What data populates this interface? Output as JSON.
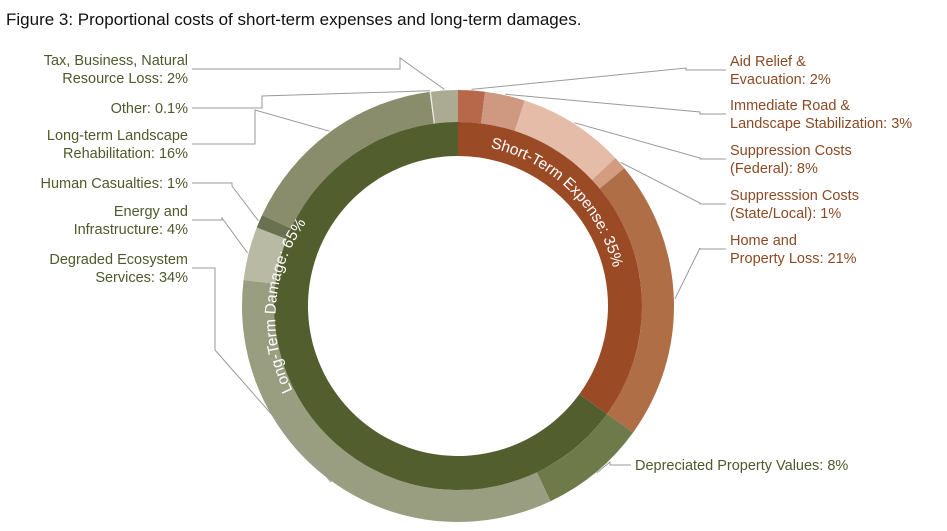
{
  "title": "Figure 3: Proportional costs of short-term expenses and long-term damages.",
  "colors": {
    "short_term_label": "#8b4a25",
    "long_term_label": "#4e5a2c"
  },
  "chart_data": {
    "type": "donut",
    "title": "Figure 3: Proportional costs of short-term expenses and long-term damages.",
    "inner": [
      {
        "name": "Short-Term Expense",
        "label": "Short-Term Expense: 35%",
        "value": 35,
        "color": "#9b4a26"
      },
      {
        "name": "Long-Term Damage",
        "label": "Long-Term Damage: 65%",
        "value": 65,
        "color": "#525e2e"
      }
    ],
    "outer": [
      {
        "name": "Aid Relief & Evacuation",
        "value": 2,
        "color": "#b7684b",
        "group": "short",
        "lines": [
          "Aid Relief &",
          "Evacuation: 2%"
        ]
      },
      {
        "name": "Immediate Road & Landscape Stabilization",
        "value": 3,
        "color": "#cf9880",
        "group": "short",
        "lines": [
          "Immediate Road &",
          "Landscape Stabilization: 3%"
        ]
      },
      {
        "name": "Suppression Costs (Federal)",
        "value": 8,
        "color": "#e4bca8",
        "group": "short",
        "lines": [
          "Suppression Costs",
          "(Federal): 8%"
        ]
      },
      {
        "name": "Suppresssion Costs (State/Local)",
        "value": 1,
        "color": "#d39b80",
        "group": "short",
        "lines": [
          "Suppresssion Costs",
          "(State/Local): 1%"
        ]
      },
      {
        "name": "Home and Property Loss",
        "value": 21,
        "color": "#b06e46",
        "group": "short",
        "lines": [
          "Home and",
          "Property Loss: 21%"
        ]
      },
      {
        "name": "Depreciated Property Values",
        "value": 8,
        "color": "#6f7a4b",
        "group": "long",
        "lines": [
          "Depreciated Property Values: 8%"
        ]
      },
      {
        "name": "Degraded Ecosystem Services",
        "value": 34,
        "color": "#999e80",
        "group": "long",
        "lines": [
          "Degraded Ecosystem",
          "Services: 34%"
        ]
      },
      {
        "name": "Energy and Infrastructure",
        "value": 4,
        "color": "#b9baa4",
        "group": "long",
        "lines": [
          "Energy and",
          "Infrastructure: 4%"
        ]
      },
      {
        "name": "Human Casualties",
        "value": 1,
        "color": "#6a7150",
        "group": "long",
        "lines": [
          "Human Casualties: 1%"
        ]
      },
      {
        "name": "Long-term Landscape Rehabilitation",
        "value": 16,
        "color": "#8a8d6c",
        "group": "long",
        "lines": [
          "Long-term Landscape",
          "Rehabilitation: 16%"
        ]
      },
      {
        "name": "Other",
        "value": 0.1,
        "color": "#ecece0",
        "group": "long",
        "lines": [
          "Other: 0.1%"
        ]
      },
      {
        "name": "Tax, Business, Natural Resource Loss",
        "value": 2,
        "color": "#aaab92",
        "group": "long",
        "lines": [
          "Tax, Business, Natural",
          "Resource Loss: 2%"
        ]
      }
    ]
  }
}
